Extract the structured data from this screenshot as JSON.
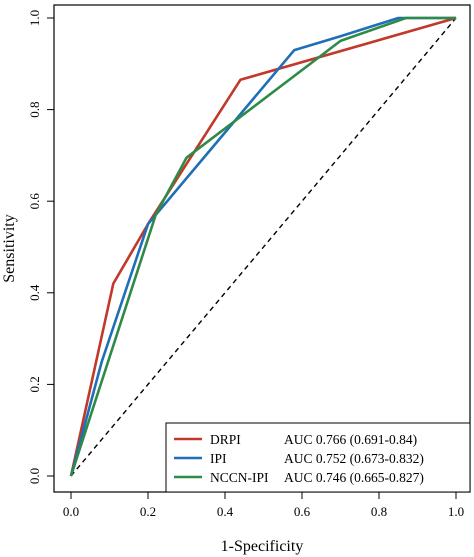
{
  "chart_data": {
    "type": "line",
    "xlabel": "1-Specificity",
    "ylabel": "Sensitivity",
    "xlim": [
      0,
      1
    ],
    "ylim": [
      0,
      1
    ],
    "x_ticks": [
      0,
      0.2,
      0.4,
      0.6,
      0.8,
      1
    ],
    "x_tick_labels": [
      "0.0",
      "0.2",
      "0.4",
      "0.6",
      "0.8",
      "1.0"
    ],
    "y_ticks": [
      0,
      0.2,
      0.4,
      0.6,
      0.8,
      1
    ],
    "y_tick_labels": [
      "0.0",
      "0.2",
      "0.4",
      "0.6",
      "0.8",
      "1.0"
    ],
    "grid": false,
    "legend_position": "bottom-right",
    "reference_line": {
      "style": "dashed",
      "x": [
        0,
        1
      ],
      "y": [
        0,
        1
      ],
      "color": "#000000"
    },
    "series": [
      {
        "name": "DRPI",
        "auc_label": "AUC 0.766 (0.691-0.84)",
        "color": "#C0392B",
        "x": [
          0,
          0.11,
          0.2,
          0.44,
          1
        ],
        "y": [
          0,
          0.42,
          0.55,
          0.865,
          1
        ]
      },
      {
        "name": "IPI",
        "auc_label": "AUC 0.752 (0.673-0.832)",
        "color": "#1F6FB8",
        "x": [
          0,
          0.08,
          0.2,
          0.4,
          0.58,
          0.7,
          0.85,
          1
        ],
        "y": [
          0,
          0.25,
          0.55,
          0.75,
          0.93,
          0.96,
          1,
          1
        ]
      },
      {
        "name": "NCCN-IPI",
        "auc_label": "AUC 0.746 (0.665-0.827)",
        "color": "#2E8B47",
        "x": [
          0,
          0.22,
          0.3,
          0.7,
          0.87,
          1
        ],
        "y": [
          0,
          0.57,
          0.695,
          0.95,
          1,
          1
        ]
      }
    ]
  }
}
